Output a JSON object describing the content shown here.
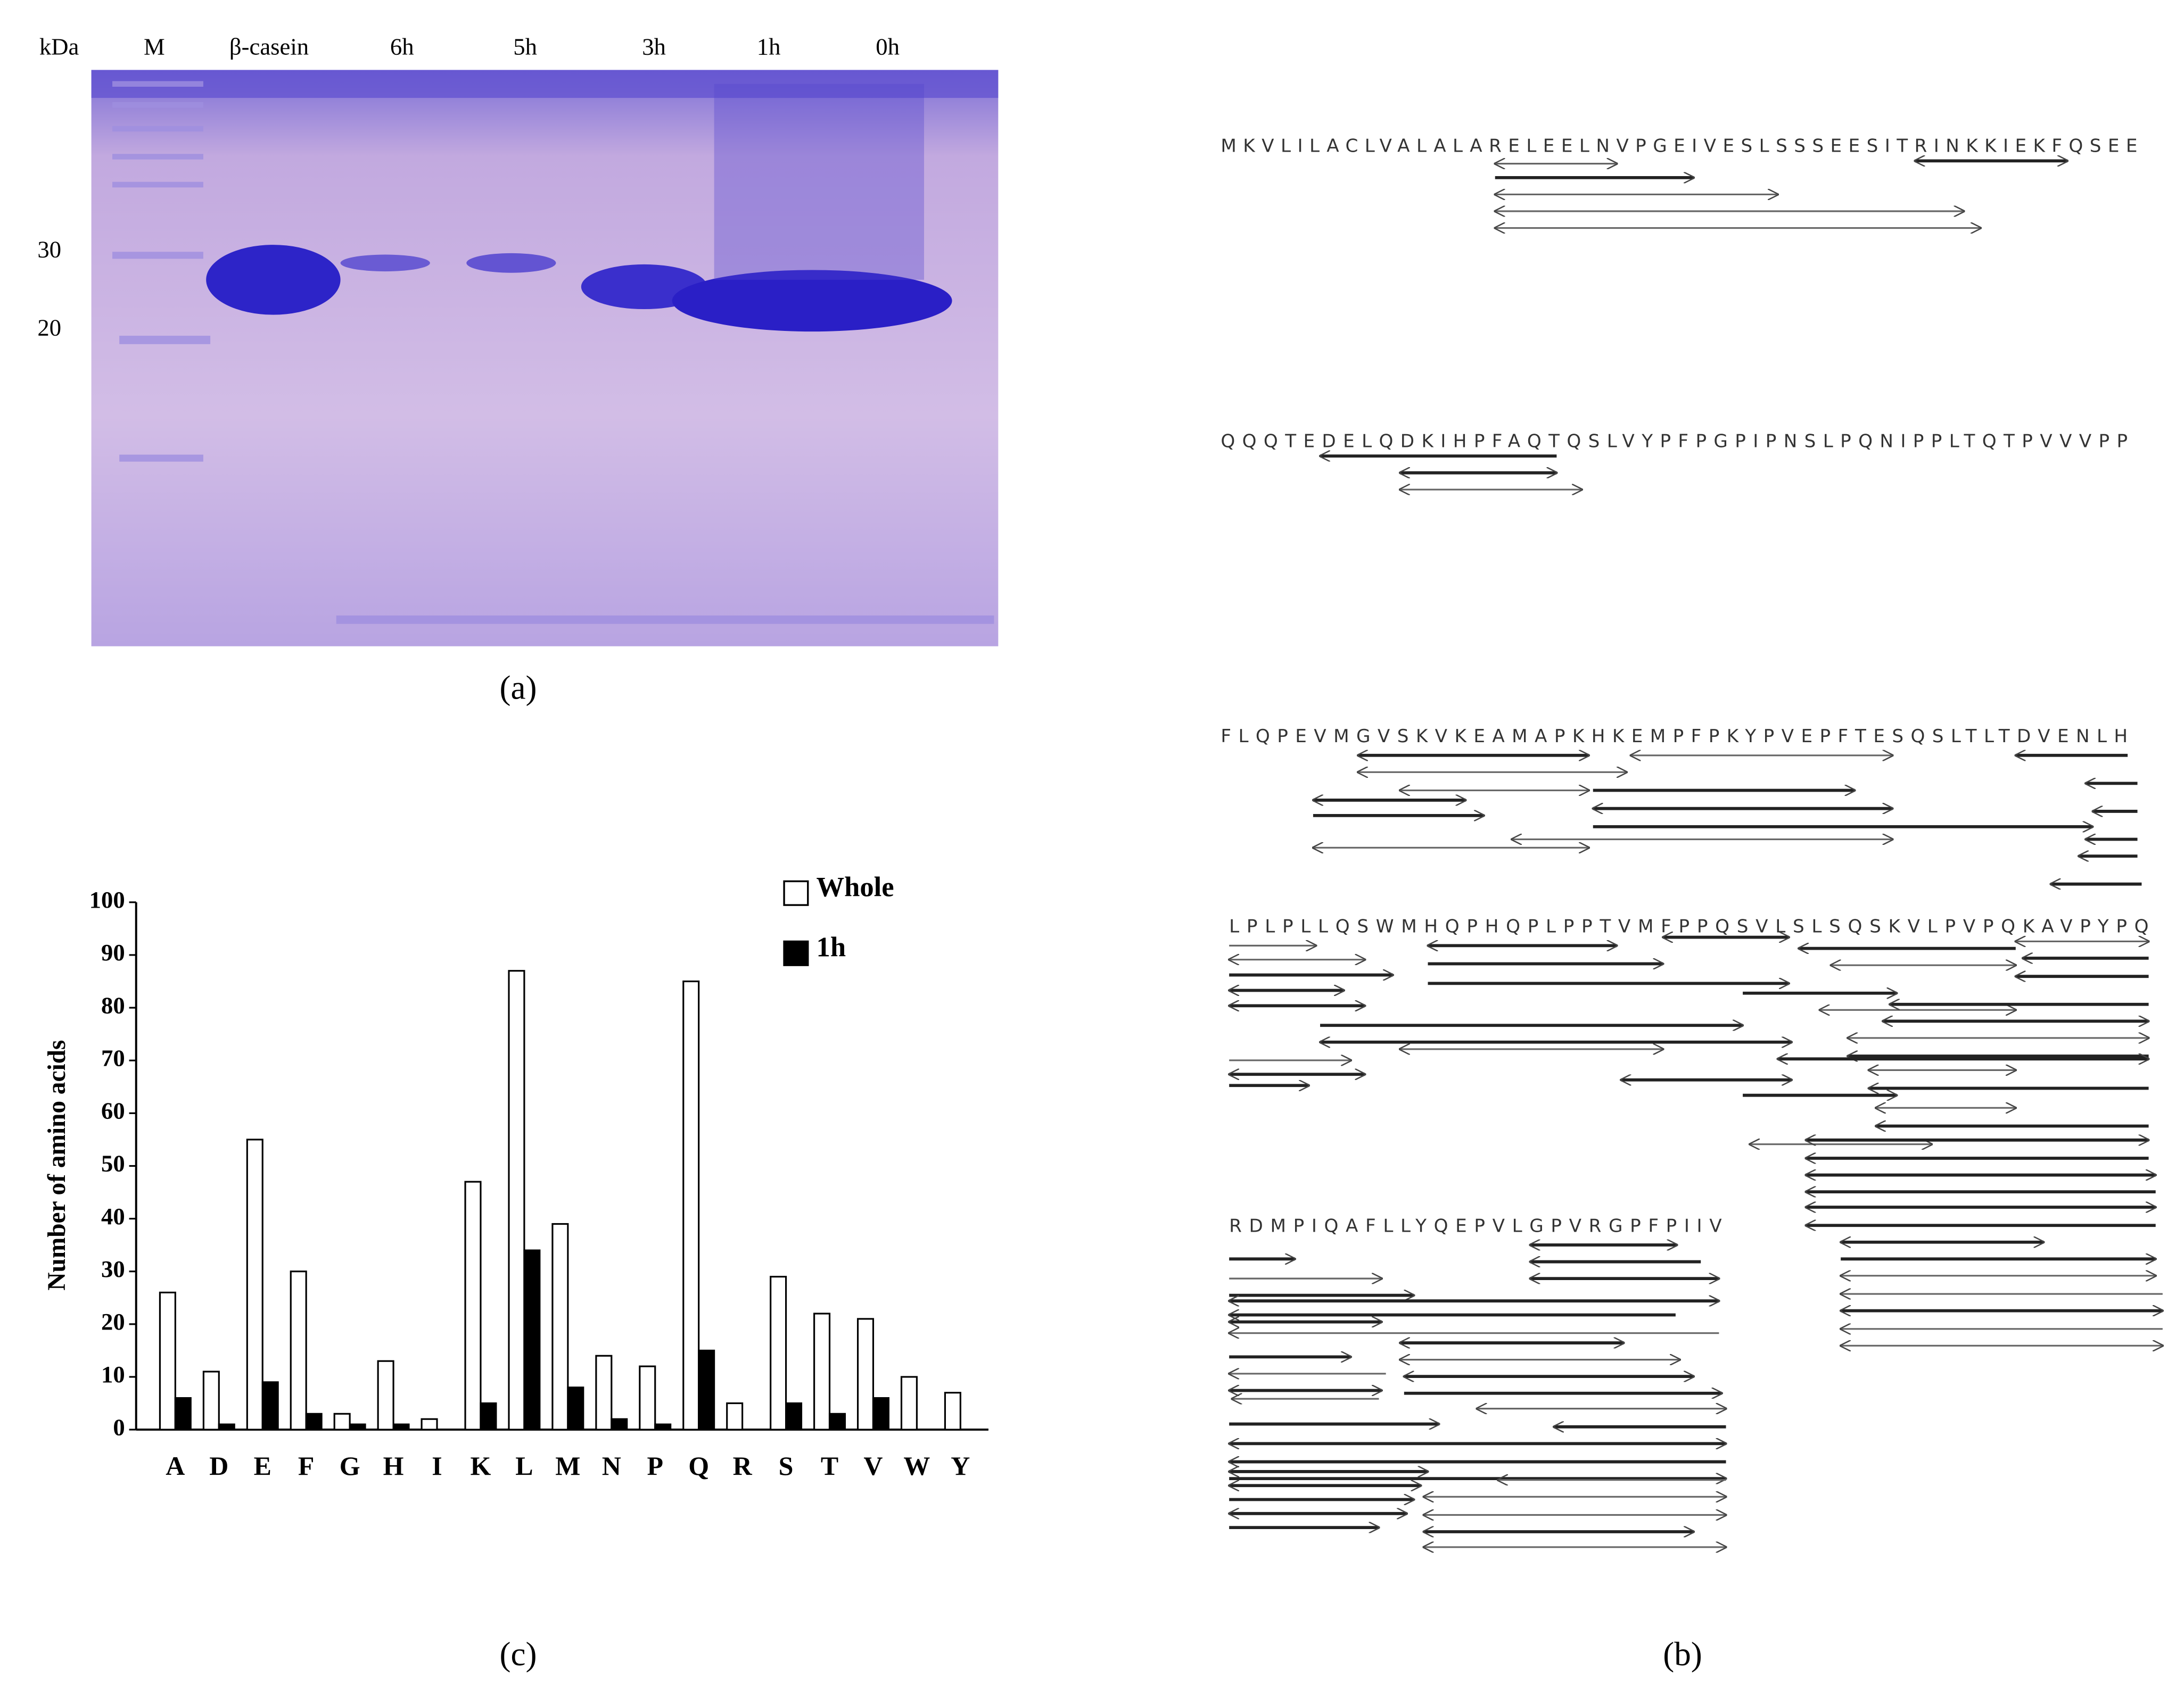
{
  "panels": {
    "a": "(a)",
    "b": "(b)",
    "c": "(c)"
  },
  "gel": {
    "unit": "kDa",
    "lanes": [
      "M",
      "β-casein",
      "6h",
      "5h",
      "3h",
      "1h",
      "0h"
    ],
    "markers": [
      30,
      20
    ]
  },
  "peptide_map": {
    "sequences": [
      "MKVLILACLVALALARELEELNVPGEIVESLSSSEESITRINKKIEKFQSEE",
      "QQQTEDELQDKIHPFAQTQSLVYPFPGPIPNSLPQNIPPLTQTPVVVPP",
      "FLQPEVMGVSKVKEAMAPKHKEMPFPKYPVEPFTESQSLTLTDVENLH",
      "LPLPLLQSWMHQPHQPLPPTVMFPPQSVLSLSQSKVLPVPQKAVPYPQ",
      "RDMPIQAFLLYQEPVLGPVRGPFPIIV"
    ]
  },
  "chart_data": {
    "type": "bar",
    "y_label": "Number of amino acids",
    "categories": [
      "A",
      "D",
      "E",
      "F",
      "G",
      "H",
      "I",
      "K",
      "L",
      "M",
      "N",
      "P",
      "Q",
      "R",
      "S",
      "T",
      "V",
      "W",
      "Y"
    ],
    "series": [
      {
        "name": "Whole",
        "color": "#ffffff",
        "values": [
          26,
          11,
          55,
          30,
          3,
          13,
          2,
          47,
          87,
          39,
          14,
          12,
          85,
          5,
          29,
          22,
          21,
          10,
          7
        ]
      },
      {
        "name": "1h",
        "color": "#000000",
        "values": [
          6,
          1,
          9,
          3,
          1,
          1,
          0,
          5,
          34,
          8,
          2,
          1,
          15,
          0,
          5,
          3,
          6,
          0,
          0
        ]
      }
    ],
    "ylim": [
      0,
      100
    ],
    "yticks": [
      0,
      10,
      20,
      30,
      40,
      50,
      60,
      70,
      80,
      90,
      100
    ],
    "grid": false
  }
}
